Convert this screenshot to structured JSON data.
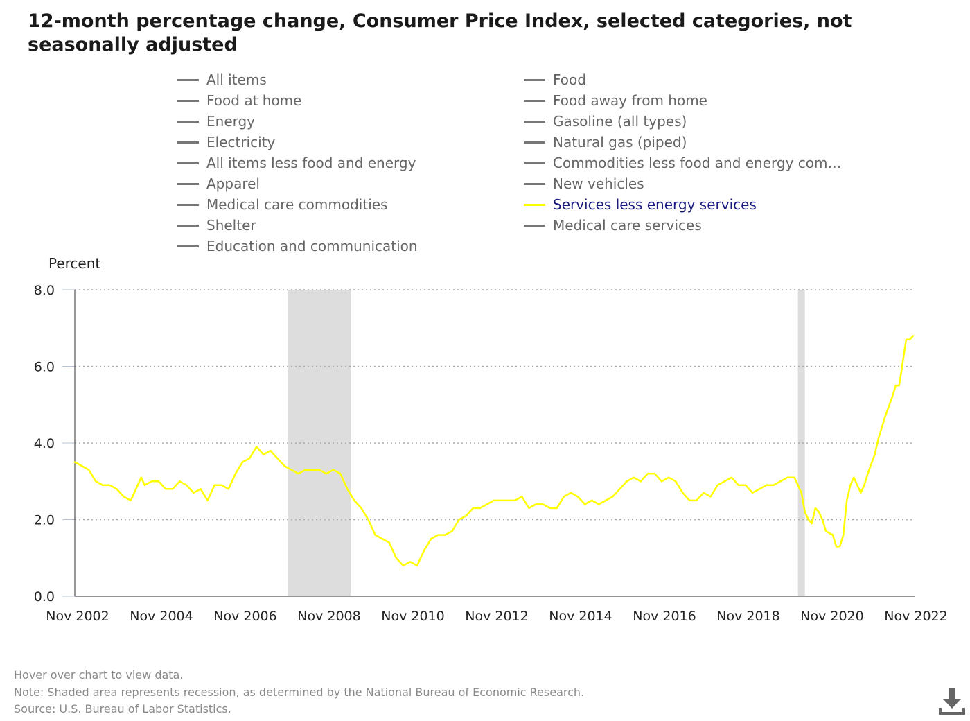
{
  "title": "12-month percentage change, Consumer Price Index, selected categories, not seasonally adjusted",
  "legend": [
    {
      "label": "All items",
      "active": false
    },
    {
      "label": "Food",
      "active": false
    },
    {
      "label": "Food at home",
      "active": false
    },
    {
      "label": "Food away from home",
      "active": false
    },
    {
      "label": "Energy",
      "active": false
    },
    {
      "label": "Gasoline (all types)",
      "active": false
    },
    {
      "label": "Electricity",
      "active": false
    },
    {
      "label": "Natural gas (piped)",
      "active": false
    },
    {
      "label": "All items less food and energy",
      "active": false
    },
    {
      "label": "Commodities less food and energy com…",
      "active": false
    },
    {
      "label": "Apparel",
      "active": false
    },
    {
      "label": "New vehicles",
      "active": false
    },
    {
      "label": "Medical care commodities",
      "active": false
    },
    {
      "label": "Services less energy services",
      "active": true
    },
    {
      "label": "Shelter",
      "active": false
    },
    {
      "label": "Medical care services",
      "active": false
    },
    {
      "label": "Education and communication",
      "active": false
    }
  ],
  "footer": {
    "hover": "Hover over chart to view data.",
    "note": "Note: Shaded area represents recession, as determined by the National Bureau of Economic Research.",
    "source": "Source: U.S. Bureau of Labor Statistics."
  },
  "icons": {
    "download": "download-icon"
  },
  "colors": {
    "series": "#ffff00",
    "recession": "#dddddd",
    "legend_inactive": "#777777",
    "legend_active_text": "#1a1a7e"
  },
  "chart_data": {
    "type": "line",
    "ylabel": "Percent",
    "ylim": [
      0,
      8
    ],
    "y_ticks": [
      "0.0",
      "2.0",
      "4.0",
      "6.0",
      "8.0"
    ],
    "x_ticks": [
      "Nov 2002",
      "Nov 2004",
      "Nov 2006",
      "Nov 2008",
      "Nov 2010",
      "Nov 2012",
      "Nov 2014",
      "Nov 2016",
      "Nov 2018",
      "Nov 2020",
      "Nov 2022"
    ],
    "x_start": "2002-11",
    "x_end": "2022-11",
    "grid": "horizontal dotted",
    "recessions": [
      [
        "2007-12",
        "2009-06"
      ],
      [
        "2020-02",
        "2020-04"
      ]
    ],
    "series": [
      {
        "name": "Services less energy services",
        "points": [
          [
            "2002-11",
            3.5
          ],
          [
            "2003-01",
            3.4
          ],
          [
            "2003-03",
            3.3
          ],
          [
            "2003-05",
            3.0
          ],
          [
            "2003-07",
            2.9
          ],
          [
            "2003-09",
            2.9
          ],
          [
            "2003-11",
            2.8
          ],
          [
            "2004-01",
            2.6
          ],
          [
            "2004-03",
            2.5
          ],
          [
            "2004-05",
            2.9
          ],
          [
            "2004-06",
            3.1
          ],
          [
            "2004-07",
            2.9
          ],
          [
            "2004-09",
            3.0
          ],
          [
            "2004-11",
            3.0
          ],
          [
            "2005-01",
            2.8
          ],
          [
            "2005-03",
            2.8
          ],
          [
            "2005-05",
            3.0
          ],
          [
            "2005-07",
            2.9
          ],
          [
            "2005-09",
            2.7
          ],
          [
            "2005-11",
            2.8
          ],
          [
            "2006-01",
            2.5
          ],
          [
            "2006-03",
            2.9
          ],
          [
            "2006-05",
            2.9
          ],
          [
            "2006-07",
            2.8
          ],
          [
            "2006-09",
            3.2
          ],
          [
            "2006-11",
            3.5
          ],
          [
            "2007-01",
            3.6
          ],
          [
            "2007-03",
            3.9
          ],
          [
            "2007-05",
            3.7
          ],
          [
            "2007-07",
            3.8
          ],
          [
            "2007-09",
            3.6
          ],
          [
            "2007-11",
            3.4
          ],
          [
            "2008-01",
            3.3
          ],
          [
            "2008-03",
            3.2
          ],
          [
            "2008-05",
            3.3
          ],
          [
            "2008-07",
            3.3
          ],
          [
            "2008-09",
            3.3
          ],
          [
            "2008-11",
            3.2
          ],
          [
            "2009-01",
            3.3
          ],
          [
            "2009-03",
            3.2
          ],
          [
            "2009-05",
            2.8
          ],
          [
            "2009-07",
            2.5
          ],
          [
            "2009-09",
            2.3
          ],
          [
            "2009-11",
            2.0
          ],
          [
            "2010-01",
            1.6
          ],
          [
            "2010-03",
            1.5
          ],
          [
            "2010-05",
            1.4
          ],
          [
            "2010-07",
            1.0
          ],
          [
            "2010-09",
            0.8
          ],
          [
            "2010-11",
            0.9
          ],
          [
            "2011-01",
            0.8
          ],
          [
            "2011-03",
            1.2
          ],
          [
            "2011-05",
            1.5
          ],
          [
            "2011-07",
            1.6
          ],
          [
            "2011-09",
            1.6
          ],
          [
            "2011-11",
            1.7
          ],
          [
            "2012-01",
            2.0
          ],
          [
            "2012-03",
            2.1
          ],
          [
            "2012-05",
            2.3
          ],
          [
            "2012-07",
            2.3
          ],
          [
            "2012-09",
            2.4
          ],
          [
            "2012-11",
            2.5
          ],
          [
            "2013-01",
            2.5
          ],
          [
            "2013-03",
            2.5
          ],
          [
            "2013-05",
            2.5
          ],
          [
            "2013-07",
            2.6
          ],
          [
            "2013-09",
            2.3
          ],
          [
            "2013-11",
            2.4
          ],
          [
            "2014-01",
            2.4
          ],
          [
            "2014-03",
            2.3
          ],
          [
            "2014-05",
            2.3
          ],
          [
            "2014-07",
            2.6
          ],
          [
            "2014-09",
            2.7
          ],
          [
            "2014-11",
            2.6
          ],
          [
            "2015-01",
            2.4
          ],
          [
            "2015-03",
            2.5
          ],
          [
            "2015-05",
            2.4
          ],
          [
            "2015-07",
            2.5
          ],
          [
            "2015-09",
            2.6
          ],
          [
            "2015-11",
            2.8
          ],
          [
            "2016-01",
            3.0
          ],
          [
            "2016-03",
            3.1
          ],
          [
            "2016-05",
            3.0
          ],
          [
            "2016-07",
            3.2
          ],
          [
            "2016-09",
            3.2
          ],
          [
            "2016-11",
            3.0
          ],
          [
            "2017-01",
            3.1
          ],
          [
            "2017-03",
            3.0
          ],
          [
            "2017-05",
            2.7
          ],
          [
            "2017-07",
            2.5
          ],
          [
            "2017-09",
            2.5
          ],
          [
            "2017-11",
            2.7
          ],
          [
            "2018-01",
            2.6
          ],
          [
            "2018-03",
            2.9
          ],
          [
            "2018-05",
            3.0
          ],
          [
            "2018-07",
            3.1
          ],
          [
            "2018-09",
            2.9
          ],
          [
            "2018-11",
            2.9
          ],
          [
            "2019-01",
            2.7
          ],
          [
            "2019-03",
            2.8
          ],
          [
            "2019-05",
            2.9
          ],
          [
            "2019-07",
            2.9
          ],
          [
            "2019-09",
            3.0
          ],
          [
            "2019-11",
            3.1
          ],
          [
            "2020-01",
            3.1
          ],
          [
            "2020-03",
            2.7
          ],
          [
            "2020-04",
            2.2
          ],
          [
            "2020-05",
            2.0
          ],
          [
            "2020-06",
            1.9
          ],
          [
            "2020-07",
            2.3
          ],
          [
            "2020-08",
            2.2
          ],
          [
            "2020-09",
            2.0
          ],
          [
            "2020-10",
            1.7
          ],
          [
            "2020-12",
            1.6
          ],
          [
            "2021-01",
            1.3
          ],
          [
            "2021-02",
            1.3
          ],
          [
            "2021-03",
            1.6
          ],
          [
            "2021-04",
            2.5
          ],
          [
            "2021-05",
            2.9
          ],
          [
            "2021-06",
            3.1
          ],
          [
            "2021-07",
            2.9
          ],
          [
            "2021-08",
            2.7
          ],
          [
            "2021-09",
            2.9
          ],
          [
            "2021-10",
            3.2
          ],
          [
            "2021-12",
            3.7
          ],
          [
            "2022-01",
            4.1
          ],
          [
            "2022-03",
            4.7
          ],
          [
            "2022-05",
            5.2
          ],
          [
            "2022-06",
            5.5
          ],
          [
            "2022-07",
            5.5
          ],
          [
            "2022-08",
            6.1
          ],
          [
            "2022-09",
            6.7
          ],
          [
            "2022-10",
            6.7
          ],
          [
            "2022-11",
            6.8
          ]
        ]
      }
    ]
  }
}
